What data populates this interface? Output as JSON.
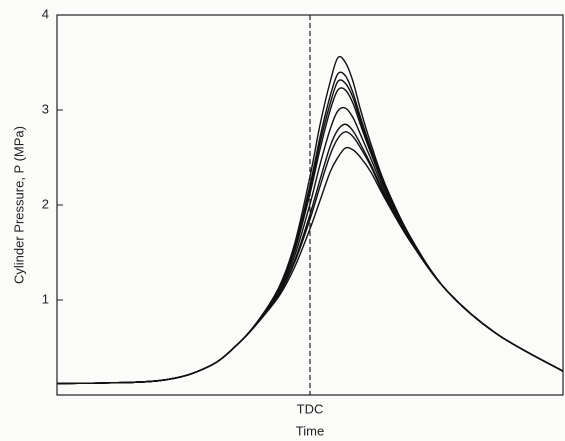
{
  "chart_data": {
    "type": "line",
    "ylabel": "Cylinder Pressure, P (MPa)",
    "xlabel": "Time",
    "x": [
      0,
      20,
      30,
      36,
      40,
      44,
      47,
      50,
      52,
      54,
      55.5,
      57,
      58.5,
      60,
      62,
      65,
      70,
      77,
      87,
      100
    ],
    "xlim": [
      0,
      100
    ],
    "xticks": [
      {
        "value": 50,
        "label": "TDC"
      }
    ],
    "ylim": [
      0,
      4
    ],
    "yticks": [
      1,
      2,
      3,
      4
    ],
    "series": [
      {
        "color": "#111111",
        "values": [
          0.12,
          0.15,
          0.3,
          0.55,
          0.8,
          1.15,
          1.6,
          2.3,
          2.85,
          3.3,
          3.55,
          3.5,
          3.3,
          3.0,
          2.65,
          2.2,
          1.65,
          1.1,
          0.64,
          0.25
        ]
      },
      {
        "color": "#111111",
        "values": [
          0.12,
          0.15,
          0.3,
          0.55,
          0.8,
          1.13,
          1.56,
          2.21,
          2.72,
          3.15,
          3.38,
          3.36,
          3.18,
          2.92,
          2.6,
          2.18,
          1.64,
          1.1,
          0.64,
          0.25
        ]
      },
      {
        "color": "#111111",
        "values": [
          0.12,
          0.15,
          0.3,
          0.55,
          0.8,
          1.13,
          1.54,
          2.17,
          2.66,
          3.07,
          3.3,
          3.28,
          3.13,
          2.88,
          2.58,
          2.16,
          1.64,
          1.1,
          0.64,
          0.25
        ]
      },
      {
        "color": "#111111",
        "values": [
          0.12,
          0.15,
          0.3,
          0.55,
          0.79,
          1.12,
          1.52,
          2.12,
          2.59,
          3.0,
          3.21,
          3.21,
          3.07,
          2.84,
          2.55,
          2.15,
          1.63,
          1.1,
          0.64,
          0.25
        ]
      },
      {
        "color": "#111111",
        "values": [
          0.12,
          0.15,
          0.3,
          0.55,
          0.79,
          1.1,
          1.47,
          2.01,
          2.43,
          2.8,
          2.99,
          3.02,
          2.92,
          2.74,
          2.49,
          2.12,
          1.62,
          1.1,
          0.64,
          0.25
        ]
      },
      {
        "color": "#111111",
        "values": [
          0.12,
          0.15,
          0.3,
          0.55,
          0.79,
          1.08,
          1.42,
          1.9,
          2.27,
          2.62,
          2.79,
          2.85,
          2.78,
          2.64,
          2.43,
          2.09,
          1.61,
          1.1,
          0.64,
          0.25
        ]
      },
      {
        "color": "#111111",
        "values": [
          0.12,
          0.15,
          0.3,
          0.55,
          0.78,
          1.07,
          1.4,
          1.85,
          2.2,
          2.53,
          2.7,
          2.77,
          2.72,
          2.6,
          2.41,
          2.07,
          1.61,
          1.1,
          0.64,
          0.25
        ]
      },
      {
        "color": "#111111",
        "values": [
          0.12,
          0.15,
          0.3,
          0.55,
          0.78,
          1.05,
          1.35,
          1.75,
          2.05,
          2.35,
          2.5,
          2.6,
          2.58,
          2.5,
          2.35,
          2.05,
          1.6,
          1.1,
          0.64,
          0.25
        ]
      }
    ]
  }
}
